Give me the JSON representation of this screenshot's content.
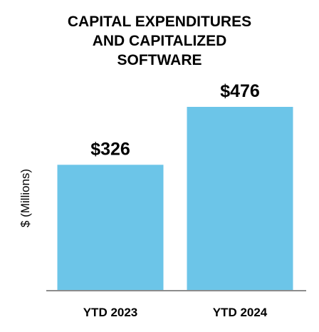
{
  "chart_data": {
    "type": "bar",
    "title_lines": [
      "CAPITAL EXPENDITURES",
      "AND CAPITALIZED",
      "SOFTWARE"
    ],
    "xlabel": "",
    "ylabel": "$ (Millions)",
    "categories": [
      "YTD 2023",
      "YTD 2024"
    ],
    "values": [
      326,
      476
    ],
    "data_labels": [
      "$326",
      "$476"
    ],
    "ylim": [
      0,
      476
    ],
    "grid": false,
    "legend": "none",
    "colors": {
      "bar": "#6CC5E8",
      "axis": "#8C8C8C",
      "text": "#000000"
    }
  }
}
